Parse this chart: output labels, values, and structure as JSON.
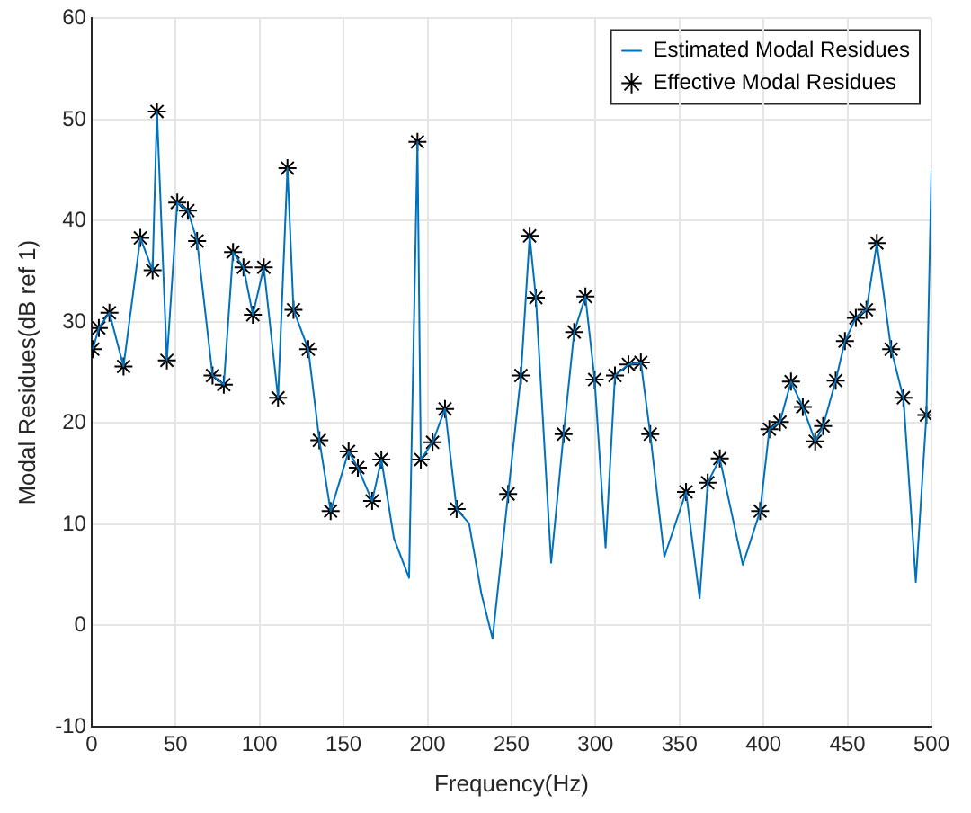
{
  "chart_data": {
    "type": "line",
    "xlabel": "Frequency(Hz)",
    "ylabel": "Modal Residues(dB ref 1)",
    "xlim": [
      0,
      500
    ],
    "xticks": [
      0,
      50,
      100,
      150,
      200,
      250,
      300,
      350,
      400,
      450,
      500
    ],
    "ylim": [
      -10,
      60
    ],
    "yticks": [
      -10,
      0,
      10,
      20,
      30,
      40,
      50,
      60
    ],
    "grid": true,
    "legend": "top right",
    "series": [
      {
        "name": "Estimated Modal Residues",
        "color": "#0072bd",
        "marker": "none",
        "line_style": "solid",
        "x": [
          0.7,
          4.3,
          10.6,
          19,
          29,
          36.3,
          38.9,
          44.8,
          51,
          57.3,
          62.8,
          72,
          78.7,
          84.2,
          90.4,
          96,
          102.5,
          111,
          116.6,
          120.2,
          129,
          135.6,
          142.3,
          153,
          158.5,
          167,
          172.5,
          180,
          189,
          194,
          196,
          203,
          210.4,
          217.3,
          224.7,
          232,
          238.7,
          248,
          255.6,
          260.8,
          264.5,
          273.6,
          281,
          287.3,
          294,
          299.5,
          306,
          311.6,
          319.6,
          327,
          332.6,
          341,
          353.9,
          362,
          366.8,
          374,
          387.7,
          398,
          403.5,
          409.8,
          416.4,
          423.4,
          430.8,
          435.5,
          443,
          448.5,
          455,
          461.3,
          467.5,
          476,
          483.3,
          490.7,
          497,
          500
        ],
        "values": [
          27.3,
          29.4,
          30.9,
          25.6,
          38.3,
          35.1,
          50.8,
          26.2,
          41.8,
          41.0,
          38.0,
          24.7,
          23.8,
          36.9,
          35.4,
          30.7,
          35.4,
          22.5,
          45.2,
          31.2,
          27.3,
          18.3,
          11.3,
          17.2,
          15.6,
          12.3,
          16.4,
          8.6,
          4.7,
          47.8,
          16.4,
          18.1,
          21.4,
          11.5,
          10.1,
          3.2,
          -1.3,
          13,
          24.7,
          38.5,
          32.4,
          6.2,
          18.9,
          29,
          32.5,
          24.3,
          7.7,
          24.7,
          25.8,
          26,
          18.9,
          6.8,
          13.2,
          2.7,
          14.1,
          16.5,
          6,
          11.3,
          19.4,
          20.1,
          24.1,
          21.6,
          18.2,
          19.7,
          24.2,
          28.1,
          30.4,
          31.2,
          37.8,
          27.3,
          22.5,
          4.3,
          20.8,
          45
        ]
      },
      {
        "name": "Effective Modal Residues",
        "type": "scatter",
        "color": "#000000",
        "marker": "cross",
        "x": [
          0.7,
          4.3,
          10.6,
          19,
          29,
          36.3,
          38.9,
          44.8,
          51,
          57.3,
          62.8,
          72,
          78.7,
          84.2,
          90.4,
          96,
          102.5,
          111,
          116.6,
          120.2,
          129,
          135.6,
          142.3,
          153,
          158.5,
          167,
          172.5,
          194,
          196,
          203,
          210.4,
          217.3,
          248,
          255.6,
          260.8,
          264.5,
          281,
          287.3,
          294,
          299.5,
          311.6,
          319.6,
          327,
          332.6,
          353.9,
          366.8,
          374,
          398,
          403.5,
          409.8,
          416.4,
          423.4,
          430.8,
          435.5,
          443,
          448.5,
          455,
          461.3,
          467.5,
          476,
          483.3,
          497
        ],
        "values": [
          27.3,
          29.4,
          30.9,
          25.6,
          38.3,
          35.1,
          50.8,
          26.2,
          41.8,
          41.0,
          38.0,
          24.7,
          23.8,
          36.9,
          35.4,
          30.7,
          35.4,
          22.5,
          45.2,
          31.2,
          27.3,
          18.3,
          11.3,
          17.2,
          15.6,
          12.3,
          16.4,
          47.8,
          16.4,
          18.1,
          21.4,
          11.5,
          13,
          24.7,
          38.5,
          32.4,
          18.9,
          29,
          32.5,
          24.3,
          24.7,
          25.8,
          26,
          18.9,
          13.2,
          14.1,
          16.5,
          11.3,
          19.4,
          20.1,
          24.1,
          21.6,
          18.2,
          19.7,
          24.2,
          28.1,
          30.4,
          31.2,
          37.8,
          27.3,
          22.5,
          20.8
        ]
      }
    ]
  }
}
